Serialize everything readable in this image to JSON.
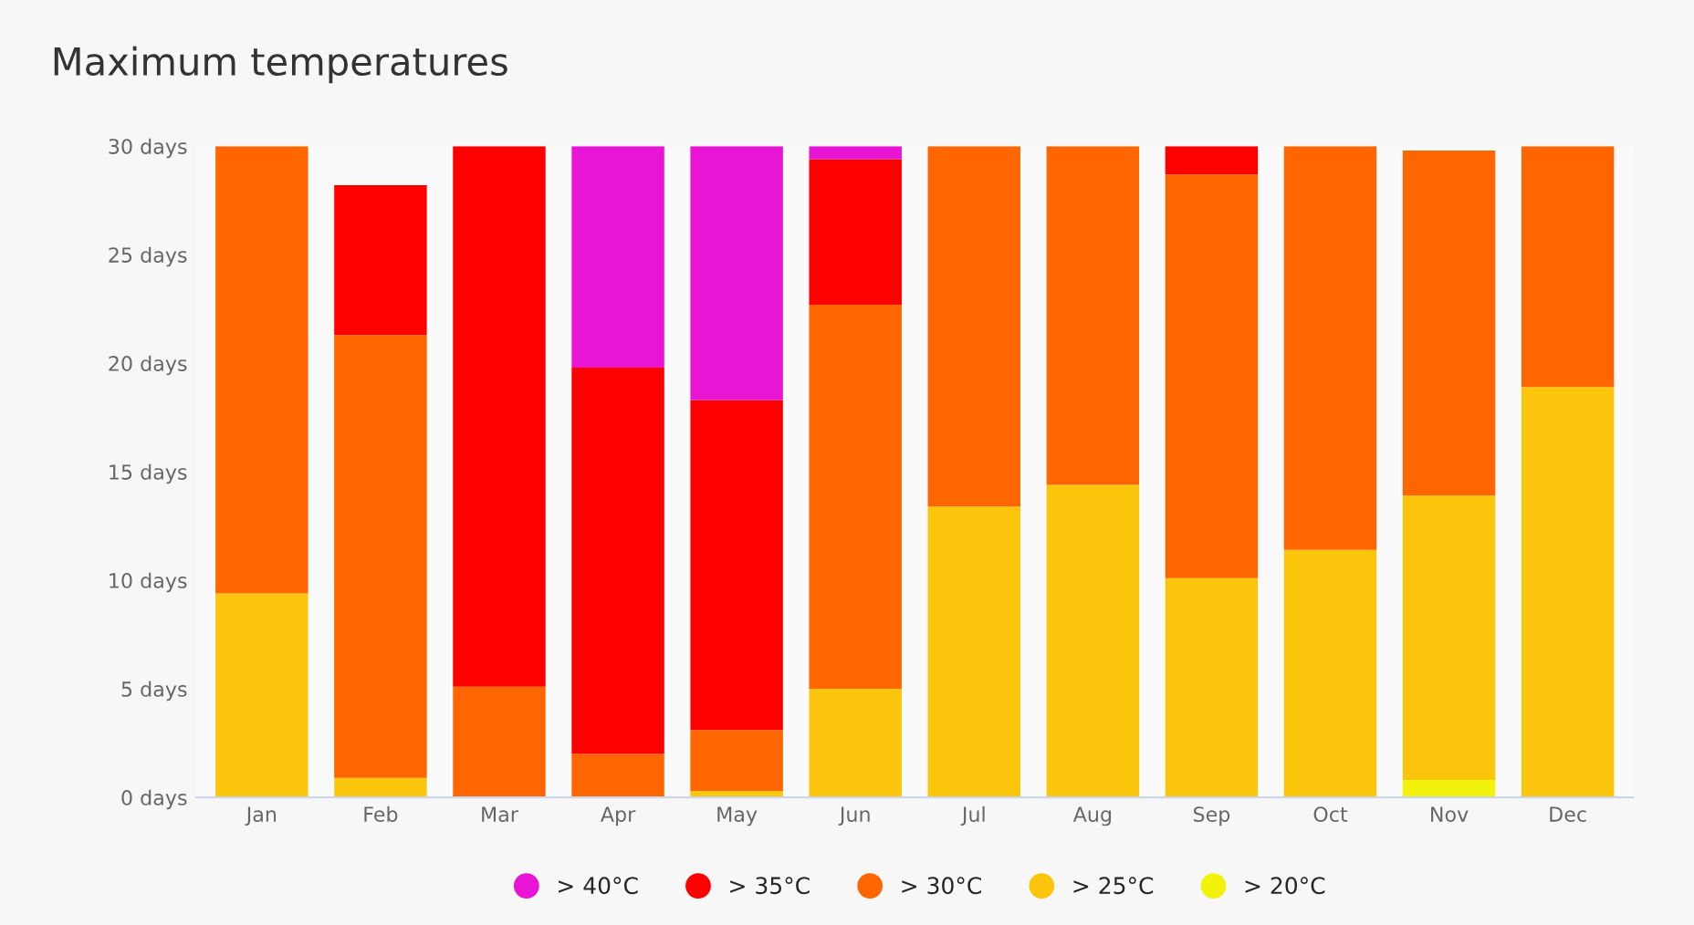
{
  "chart_data": {
    "type": "bar",
    "title": "Maximum temperatures",
    "stacked": true,
    "categories": [
      "Jan",
      "Feb",
      "Mar",
      "Apr",
      "May",
      "Jun",
      "Jul",
      "Aug",
      "Sep",
      "Oct",
      "Nov",
      "Dec"
    ],
    "series": [
      {
        "name": "> 20°C",
        "color": "#f2f20a",
        "values": [
          0,
          0,
          0,
          0,
          0,
          0,
          0,
          0,
          0,
          0,
          0.8,
          0
        ]
      },
      {
        "name": "> 25°C",
        "color": "#fbc50c",
        "values": [
          9.4,
          0.9,
          0,
          0,
          0.3,
          5.0,
          13.4,
          14.4,
          10.1,
          11.4,
          13.1,
          18.9
        ]
      },
      {
        "name": "> 30°C",
        "color": "#ff6600",
        "values": [
          20.6,
          20.4,
          5.1,
          2.0,
          2.8,
          17.7,
          16.6,
          15.6,
          18.6,
          18.6,
          15.9,
          11.1
        ]
      },
      {
        "name": "> 35°C",
        "color": "#ff0000",
        "values": [
          0,
          6.9,
          24.9,
          17.8,
          15.2,
          6.7,
          0,
          0,
          1.3,
          0,
          0,
          0
        ]
      },
      {
        "name": "> 40°C",
        "color": "#e815d5",
        "values": [
          0,
          0,
          0,
          10.2,
          11.7,
          0.6,
          0,
          0,
          0,
          0,
          0,
          0
        ]
      }
    ],
    "ylim": [
      0,
      30
    ],
    "yticks": [
      {
        "value": 0,
        "label": "0 days"
      },
      {
        "value": 5,
        "label": "5 days"
      },
      {
        "value": 10,
        "label": "10 days"
      },
      {
        "value": 15,
        "label": "15 days"
      },
      {
        "value": 20,
        "label": "20 days"
      },
      {
        "value": 25,
        "label": "25 days"
      },
      {
        "value": 30,
        "label": "30 days"
      }
    ],
    "grid": false,
    "legend": "bottom"
  }
}
